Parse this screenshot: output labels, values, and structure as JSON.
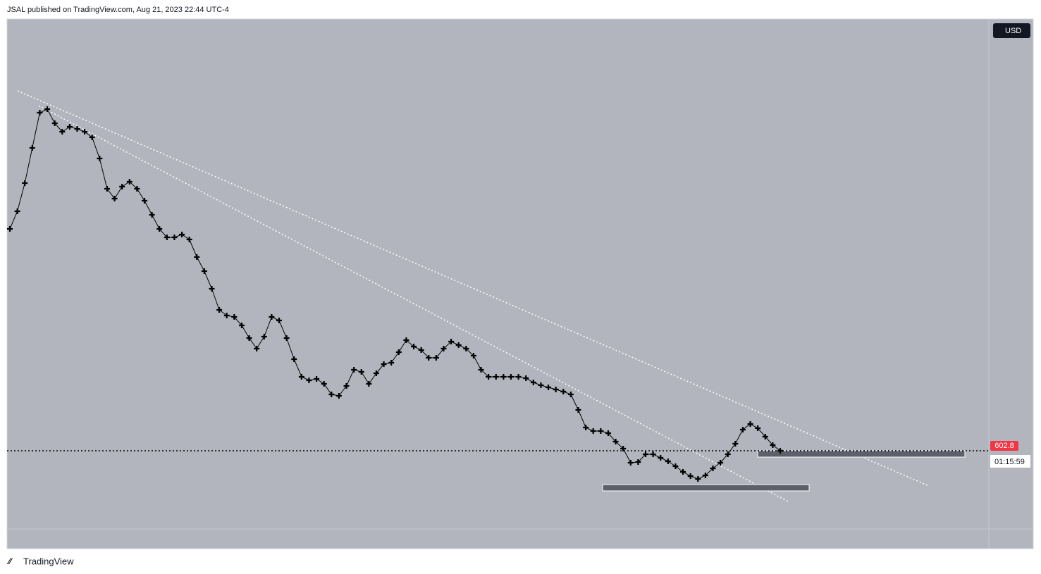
{
  "header": {
    "attribution": "JSAL published on TradingView.com, Aug 21, 2023 22:44 UTC-4"
  },
  "footer": {
    "brand": "TradingView"
  },
  "currency_button": "USD",
  "countdown": "01:15:59",
  "chart_data": {
    "type": "line",
    "color": "#000000",
    "ylim": [
      575.2,
      725.2
    ],
    "last_price": 602.8,
    "last_price_color": "#f23645",
    "values": [
      665.8,
      670.8,
      678.8,
      688.8,
      698.8,
      699.8,
      695.8,
      693.4,
      694.8,
      694.2,
      693.4,
      691.8,
      685.8,
      677.2,
      674.4,
      677.8,
      679.2,
      677.2,
      673.8,
      669.8,
      665.8,
      663.4,
      663.4,
      664.2,
      662.8,
      657.8,
      653.8,
      648.8,
      642.8,
      641.2,
      640.8,
      638.4,
      634.8,
      631.8,
      635.2,
      640.8,
      639.8,
      634.8,
      628.8,
      623.8,
      622.8,
      623.2,
      621.8,
      618.8,
      618.4,
      621.2,
      625.8,
      625.2,
      621.8,
      624.8,
      627.4,
      627.8,
      630.8,
      634.2,
      632.4,
      631.4,
      629.2,
      629.2,
      631.8,
      633.8,
      632.8,
      631.8,
      629.8,
      625.8,
      623.8,
      623.8,
      623.8,
      623.8,
      623.8,
      623.4,
      622.2,
      621.4,
      620.8,
      620.2,
      619.6,
      618.8,
      614.4,
      609.4,
      608.4,
      608.4,
      607.8,
      605.4,
      603.4,
      599.4,
      599.6,
      601.8,
      601.8,
      600.8,
      599.8,
      598.4,
      596.8,
      595.6,
      594.8,
      595.8,
      597.8,
      599.4,
      601.8,
      604.8,
      608.8,
      610.4,
      609.2,
      606.8,
      604.4,
      602.8
    ]
  }
}
